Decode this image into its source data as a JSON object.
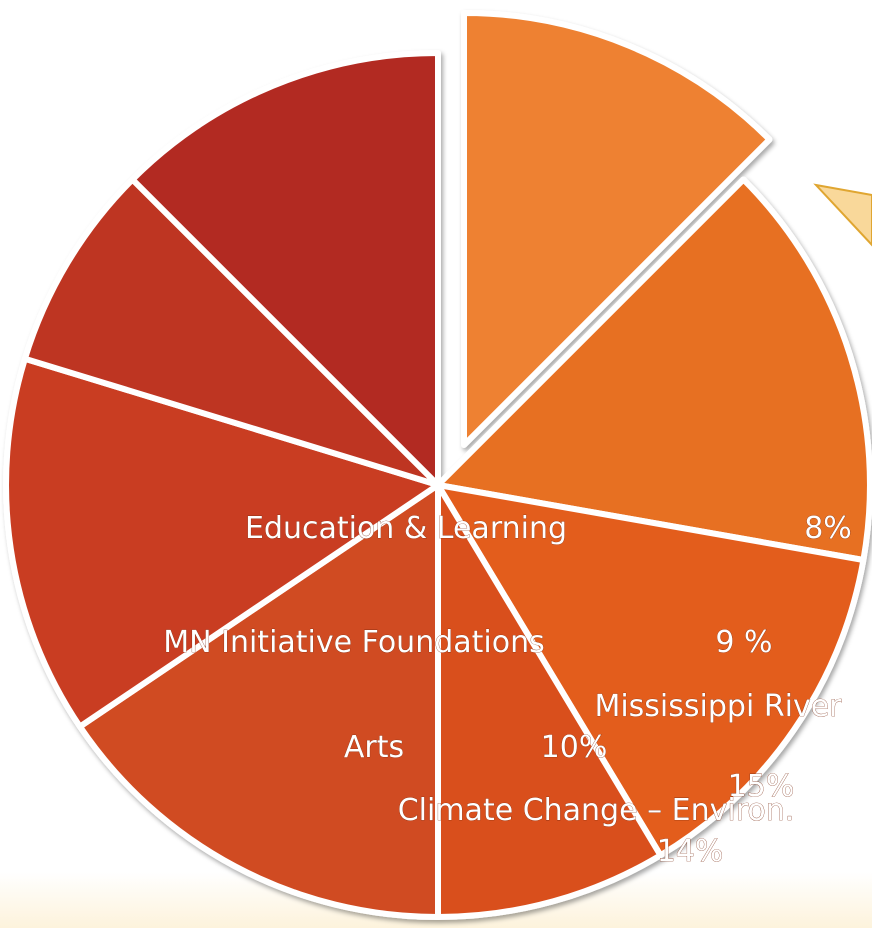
{
  "chart_data": {
    "type": "pie",
    "title": "",
    "slices": [
      {
        "label": "",
        "value": null,
        "color": "#ee8130",
        "exploded": true
      },
      {
        "label": "",
        "value": 8,
        "value_text": "8%",
        "color": "#e76f22"
      },
      {
        "label": "Education & Learning",
        "value": 9,
        "value_text": "9 %",
        "color": "#e35d1f"
      },
      {
        "label": "MN Initiative Foundations",
        "value": 10,
        "value_text": "10%",
        "color": "#d94f1f"
      },
      {
        "label": "Arts",
        "value": 15,
        "value_text": "15%",
        "color": "#d04b22"
      },
      {
        "label": "Mississippi River",
        "value": 14,
        "value_text": "14%",
        "color": "#c93c23"
      },
      {
        "label": "Climate Change – Environ.",
        "value": null,
        "color": "#be3522"
      },
      {
        "label": "",
        "value": null,
        "color": "#b22a22"
      }
    ],
    "legend": "none"
  }
}
